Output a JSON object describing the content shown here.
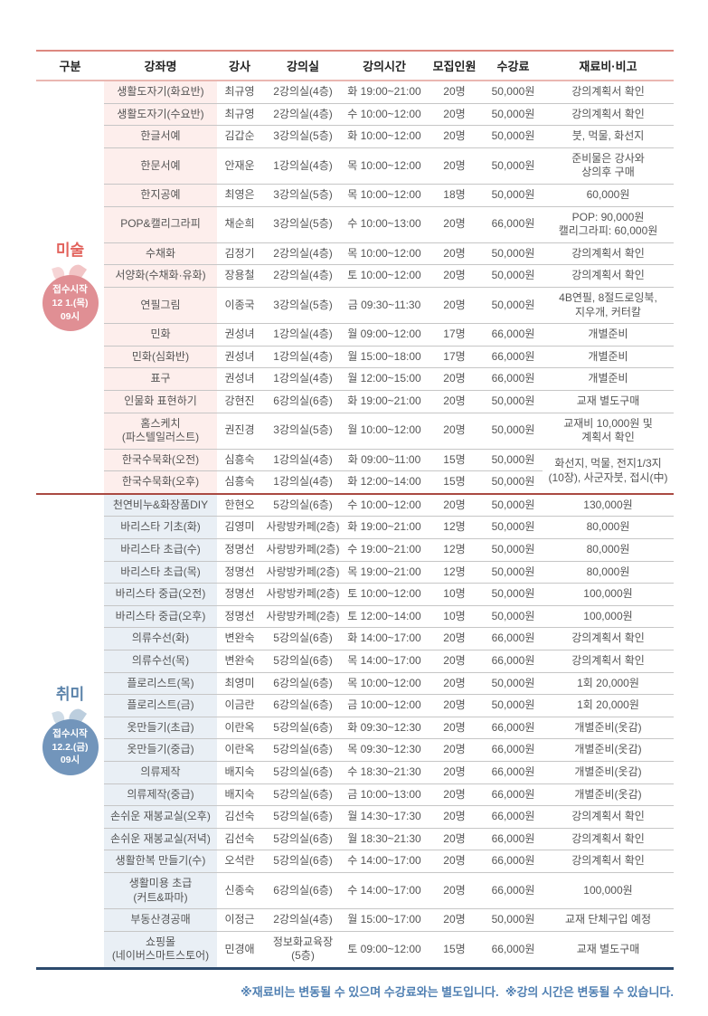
{
  "colors": {
    "art_accent": "#e2625c",
    "art_circle": "#e08f94",
    "art_leaf": "#f2c5c6",
    "art_tint": "#fdeeec",
    "hobby_accent": "#5b83aa",
    "hobby_circle": "#7295bb",
    "hobby_leaf": "#bccede",
    "hobby_tint": "#e9eff5",
    "top_line": "#dd8880",
    "header_line": "#eab7b1",
    "row_line": "#c6c6c6",
    "divider_line": "#aa4a42",
    "bottom_line": "#2c4a6d",
    "footnote": "#4f7fb2",
    "text": "#555555",
    "header_text": "#222222"
  },
  "table": {
    "headers": [
      "구분",
      "강좌명",
      "강사",
      "강의실",
      "강의시간",
      "모집인원",
      "수강료",
      "재료비·비고"
    ],
    "sections": [
      {
        "id": "art",
        "label": "미술",
        "badge": {
          "lines": [
            "접수시작",
            "12 1.(목)",
            "09시"
          ]
        },
        "rows": [
          {
            "name": "생활도자기(화요반)",
            "instructor": "최규영",
            "room": "2강의실(4층)",
            "time": "화 19:00~21:00",
            "capacity": "20명",
            "fee": "50,000원",
            "note": "강의계획서 확인"
          },
          {
            "name": "생활도자기(수요반)",
            "instructor": "최규영",
            "room": "2강의실(4층)",
            "time": "수 10:00~12:00",
            "capacity": "20명",
            "fee": "50,000원",
            "note": "강의계획서 확인"
          },
          {
            "name": "한글서예",
            "instructor": "김갑순",
            "room": "3강의실(5층)",
            "time": "화 10:00~12:00",
            "capacity": "20명",
            "fee": "50,000원",
            "note": "붓, 먹물, 화선지"
          },
          {
            "name": "한문서예",
            "instructor": "안재운",
            "room": "1강의실(4층)",
            "time": "목 10:00~12:00",
            "capacity": "20명",
            "fee": "50,000원",
            "note": "준비물은 강사와\n상의후 구매"
          },
          {
            "name": "한지공예",
            "instructor": "최영은",
            "room": "3강의실(5층)",
            "time": "목 10:00~12:00",
            "capacity": "18명",
            "fee": "50,000원",
            "note": "60,000원"
          },
          {
            "name": "POP&캘리그라피",
            "instructor": "채순희",
            "room": "3강의실(5층)",
            "time": "수 10:00~13:00",
            "capacity": "20명",
            "fee": "66,000원",
            "note": "POP: 90,000원\n캘리그라피: 60,000원"
          },
          {
            "name": "수채화",
            "instructor": "김정기",
            "room": "2강의실(4층)",
            "time": "목 10:00~12:00",
            "capacity": "20명",
            "fee": "50,000원",
            "note": "강의계획서 확인"
          },
          {
            "name": "서양화(수채화·유화)",
            "instructor": "장용철",
            "room": "2강의실(4층)",
            "time": "토 10:00~12:00",
            "capacity": "20명",
            "fee": "50,000원",
            "note": "강의계획서 확인"
          },
          {
            "name": "연필그림",
            "instructor": "이종국",
            "room": "3강의실(5층)",
            "time": "금 09:30~11:30",
            "capacity": "20명",
            "fee": "50,000원",
            "note": "4B연필, 8절드로잉북,\n지우개, 커터칼"
          },
          {
            "name": "민화",
            "instructor": "권성녀",
            "room": "1강의실(4층)",
            "time": "월 09:00~12:00",
            "capacity": "17명",
            "fee": "66,000원",
            "note": "개별준비"
          },
          {
            "name": "민화(심화반)",
            "instructor": "권성녀",
            "room": "1강의실(4층)",
            "time": "월 15:00~18:00",
            "capacity": "17명",
            "fee": "66,000원",
            "note": "개별준비"
          },
          {
            "name": "표구",
            "instructor": "권성녀",
            "room": "1강의실(4층)",
            "time": "월 12:00~15:00",
            "capacity": "20명",
            "fee": "66,000원",
            "note": "개별준비"
          },
          {
            "name": "인물화 표현하기",
            "instructor": "강현진",
            "room": "6강의실(6층)",
            "time": "화 19:00~21:00",
            "capacity": "20명",
            "fee": "50,000원",
            "note": "교재 별도구매"
          },
          {
            "name": "홈스케치\n(파스텔일러스트)",
            "instructor": "권진경",
            "room": "3강의실(5층)",
            "time": "월 10:00~12:00",
            "capacity": "20명",
            "fee": "50,000원",
            "note": "교재비 10,000원 및\n계획서 확인"
          },
          {
            "name": "한국수묵화(오전)",
            "instructor": "심흥숙",
            "room": "1강의실(4층)",
            "time": "화 09:00~11:00",
            "capacity": "15명",
            "fee": "50,000원",
            "note": "화선지, 먹물, 전지1/3지\n(10장), 사군자붓, 접시(中)",
            "note_rowspan": 2
          },
          {
            "name": "한국수묵화(오후)",
            "instructor": "심흥숙",
            "room": "1강의실(4층)",
            "time": "화 12:00~14:00",
            "capacity": "15명",
            "fee": "50,000원",
            "note": null
          }
        ]
      },
      {
        "id": "hobby",
        "label": "취미",
        "badge": {
          "lines": [
            "접수시작",
            "12.2.(금)",
            "09시"
          ]
        },
        "rows": [
          {
            "name": "천연비누&화장품DIY",
            "instructor": "한현오",
            "room": "5강의실(6층)",
            "time": "수 10:00~12:00",
            "capacity": "20명",
            "fee": "50,000원",
            "note": "130,000원"
          },
          {
            "name": "바리스타 기초(화)",
            "instructor": "김영미",
            "room": "사랑방카페(2층)",
            "time": "화 19:00~21:00",
            "capacity": "12명",
            "fee": "50,000원",
            "note": "80,000원"
          },
          {
            "name": "바리스타 초급(수)",
            "instructor": "정명선",
            "room": "사랑방카페(2층)",
            "time": "수 19:00~21:00",
            "capacity": "12명",
            "fee": "50,000원",
            "note": "80,000원"
          },
          {
            "name": "바리스타 초급(목)",
            "instructor": "정명선",
            "room": "사랑방카페(2층)",
            "time": "목 19:00~21:00",
            "capacity": "12명",
            "fee": "50,000원",
            "note": "80,000원"
          },
          {
            "name": "바리스타 중급(오전)",
            "instructor": "정명선",
            "room": "사랑방카페(2층)",
            "time": "토 10:00~12:00",
            "capacity": "10명",
            "fee": "50,000원",
            "note": "100,000원"
          },
          {
            "name": "바리스타 중급(오후)",
            "instructor": "정명선",
            "room": "사랑방카페(2층)",
            "time": "토 12:00~14:00",
            "capacity": "10명",
            "fee": "50,000원",
            "note": "100,000원"
          },
          {
            "name": "의류수선(화)",
            "instructor": "변완숙",
            "room": "5강의실(6층)",
            "time": "화 14:00~17:00",
            "capacity": "20명",
            "fee": "66,000원",
            "note": "강의계획서 확인"
          },
          {
            "name": "의류수선(목)",
            "instructor": "변완숙",
            "room": "5강의실(6층)",
            "time": "목 14:00~17:00",
            "capacity": "20명",
            "fee": "66,000원",
            "note": "강의계획서 확인"
          },
          {
            "name": "플로리스트(목)",
            "instructor": "최영미",
            "room": "6강의실(6층)",
            "time": "목 10:00~12:00",
            "capacity": "20명",
            "fee": "50,000원",
            "note": "1회 20,000원"
          },
          {
            "name": "플로리스트(금)",
            "instructor": "이금란",
            "room": "6강의실(6층)",
            "time": "금 10:00~12:00",
            "capacity": "20명",
            "fee": "50,000원",
            "note": "1회 20,000원"
          },
          {
            "name": "옷만들기(초급)",
            "instructor": "이란옥",
            "room": "5강의실(6층)",
            "time": "화 09:30~12:30",
            "capacity": "20명",
            "fee": "66,000원",
            "note": "개별준비(옷감)"
          },
          {
            "name": "옷만들기(중급)",
            "instructor": "이란옥",
            "room": "5강의실(6층)",
            "time": "목 09:30~12:30",
            "capacity": "20명",
            "fee": "66,000원",
            "note": "개별준비(옷감)"
          },
          {
            "name": "의류제작",
            "instructor": "배지숙",
            "room": "5강의실(6층)",
            "time": "수 18:30~21:30",
            "capacity": "20명",
            "fee": "66,000원",
            "note": "개별준비(옷감)"
          },
          {
            "name": "의류제작(중급)",
            "instructor": "배지숙",
            "room": "5강의실(6층)",
            "time": "금 10:00~13:00",
            "capacity": "20명",
            "fee": "66,000원",
            "note": "개별준비(옷감)"
          },
          {
            "name": "손쉬운 재봉교실(오후)",
            "instructor": "김선숙",
            "room": "5강의실(6층)",
            "time": "월 14:30~17:30",
            "capacity": "20명",
            "fee": "66,000원",
            "note": "강의계획서 확인"
          },
          {
            "name": "손쉬운 재봉교실(저녁)",
            "instructor": "김선숙",
            "room": "5강의실(6층)",
            "time": "월 18:30~21:30",
            "capacity": "20명",
            "fee": "66,000원",
            "note": "강의계획서 확인"
          },
          {
            "name": "생활한복 만들기(수)",
            "instructor": "오석란",
            "room": "5강의실(6층)",
            "time": "수 14:00~17:00",
            "capacity": "20명",
            "fee": "66,000원",
            "note": "강의계획서 확인"
          },
          {
            "name": "생활미용 초급\n(커트&파마)",
            "instructor": "신종숙",
            "room": "6강의실(6층)",
            "time": "수 14:00~17:00",
            "capacity": "20명",
            "fee": "66,000원",
            "note": "100,000원"
          },
          {
            "name": "부동산경공매",
            "instructor": "이정근",
            "room": "2강의실(4층)",
            "time": "월 15:00~17:00",
            "capacity": "20명",
            "fee": "50,000원",
            "note": "교재 단체구입 예정"
          },
          {
            "name": "쇼핑몰\n(네이버스마트스토어)",
            "instructor": "민경애",
            "room": "정보화교육장\n(5층)",
            "time": "토 09:00~12:00",
            "capacity": "15명",
            "fee": "66,000원",
            "note": "교재 별도구매"
          }
        ]
      }
    ],
    "footnote": "※재료비는 변동될 수 있으며 수강료와는 별도입니다.  ※강의 시간은 변동될 수 있습니다."
  }
}
